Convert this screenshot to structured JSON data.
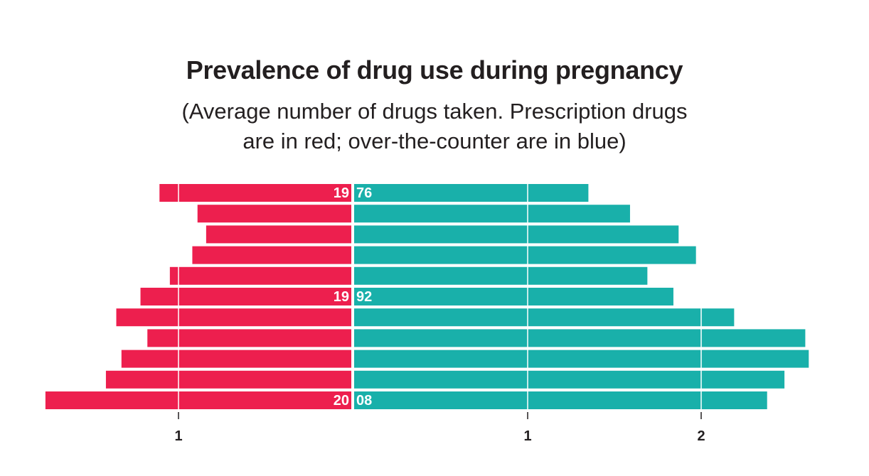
{
  "chart_data": {
    "type": "bar",
    "layout": "diverging",
    "title": "Prevalence of drug use during pregnancy",
    "subtitle_lines": [
      "(Average number of drugs taken. Prescription drugs",
      "are in red; over-the-counter are in blue)"
    ],
    "row_labels": [
      {
        "row": 0,
        "left": "19",
        "right": "76"
      },
      {
        "row": 5,
        "left": "19",
        "right": "92"
      },
      {
        "row": 10,
        "left": "20",
        "right": "08"
      }
    ],
    "series": [
      {
        "name": "Prescription",
        "color": "#ed1f4e",
        "direction": "left",
        "values": [
          1.11,
          0.89,
          0.84,
          0.92,
          1.05,
          1.22,
          1.36,
          1.18,
          1.33,
          1.42,
          1.77
        ]
      },
      {
        "name": "Over-the-counter",
        "color": "#19b0aa",
        "direction": "right",
        "values": [
          1.35,
          1.59,
          1.87,
          1.97,
          1.69,
          1.84,
          2.19,
          2.6,
          2.62,
          2.48,
          2.38
        ]
      }
    ],
    "left_ticks": [
      {
        "value": 1,
        "label": "1"
      }
    ],
    "right_ticks": [
      {
        "value": 1,
        "label": "1"
      },
      {
        "value": 2,
        "label": "2"
      }
    ],
    "left_xlim": [
      0,
      1.77
    ],
    "right_xlim": [
      0,
      2.62
    ],
    "grid": true,
    "legend": "none"
  }
}
